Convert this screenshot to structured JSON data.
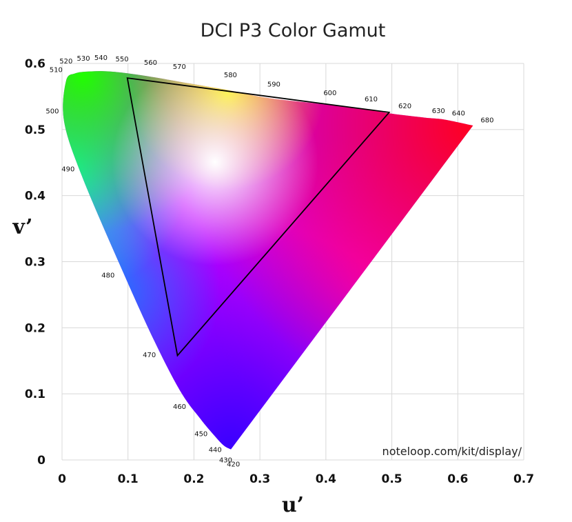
{
  "chart_data": {
    "type": "scatter",
    "title": "DCI P3 Color Gamut",
    "xlabel": "u’",
    "ylabel": "v’",
    "xlim": [
      0,
      0.7
    ],
    "ylim": [
      0,
      0.6
    ],
    "x_ticks": [
      0,
      0.1,
      0.2,
      0.3,
      0.4,
      0.5,
      0.6,
      0.7
    ],
    "x_tick_labels": [
      "0",
      "0.1",
      "0.2",
      "0.3",
      "0.4",
      "0.5",
      "0.6",
      "0.7"
    ],
    "y_ticks": [
      0,
      0.1,
      0.2,
      0.3,
      0.4,
      0.5,
      0.6
    ],
    "y_tick_labels": [
      "0",
      "0.1",
      "0.2",
      "0.3",
      "0.4",
      "0.5",
      "0.6"
    ],
    "grid": true,
    "spectral_locus": [
      {
        "wavelength": "420",
        "u": 0.256,
        "v": 0.016
      },
      {
        "wavelength": "430",
        "u": 0.245,
        "v": 0.022
      },
      {
        "wavelength": "440",
        "u": 0.23,
        "v": 0.038
      },
      {
        "wavelength": "450",
        "u": 0.21,
        "v": 0.062
      },
      {
        "wavelength": "460",
        "u": 0.18,
        "v": 0.103
      },
      {
        "wavelength": "470",
        "u": 0.14,
        "v": 0.18
      },
      {
        "wavelength": "480",
        "u": 0.09,
        "v": 0.29
      },
      {
        "wavelength": "490",
        "u": 0.03,
        "v": 0.43
      },
      {
        "wavelength": "500",
        "u": 0.003,
        "v": 0.513
      },
      {
        "wavelength": "510",
        "u": 0.006,
        "v": 0.573
      },
      {
        "wavelength": "520",
        "u": 0.02,
        "v": 0.585
      },
      {
        "wavelength": "530",
        "u": 0.045,
        "v": 0.588
      },
      {
        "wavelength": "540",
        "u": 0.07,
        "v": 0.588
      },
      {
        "wavelength": "550",
        "u": 0.1,
        "v": 0.585
      },
      {
        "wavelength": "560",
        "u": 0.14,
        "v": 0.579
      },
      {
        "wavelength": "570",
        "u": 0.18,
        "v": 0.572
      },
      {
        "wavelength": "580",
        "u": 0.25,
        "v": 0.56
      },
      {
        "wavelength": "590",
        "u": 0.31,
        "v": 0.548
      },
      {
        "wavelength": "600",
        "u": 0.39,
        "v": 0.539
      },
      {
        "wavelength": "610",
        "u": 0.45,
        "v": 0.532
      },
      {
        "wavelength": "620",
        "u": 0.5,
        "v": 0.524
      },
      {
        "wavelength": "630",
        "u": 0.55,
        "v": 0.518
      },
      {
        "wavelength": "640",
        "u": 0.58,
        "v": 0.515
      },
      {
        "wavelength": "680",
        "u": 0.623,
        "v": 0.506
      }
    ],
    "gamut_triangle": [
      {
        "u": 0.099,
        "v": 0.578
      },
      {
        "u": 0.496,
        "v": 0.526
      },
      {
        "u": 0.175,
        "v": 0.158
      }
    ],
    "annotation": "noteloop.com/kit/display/"
  }
}
